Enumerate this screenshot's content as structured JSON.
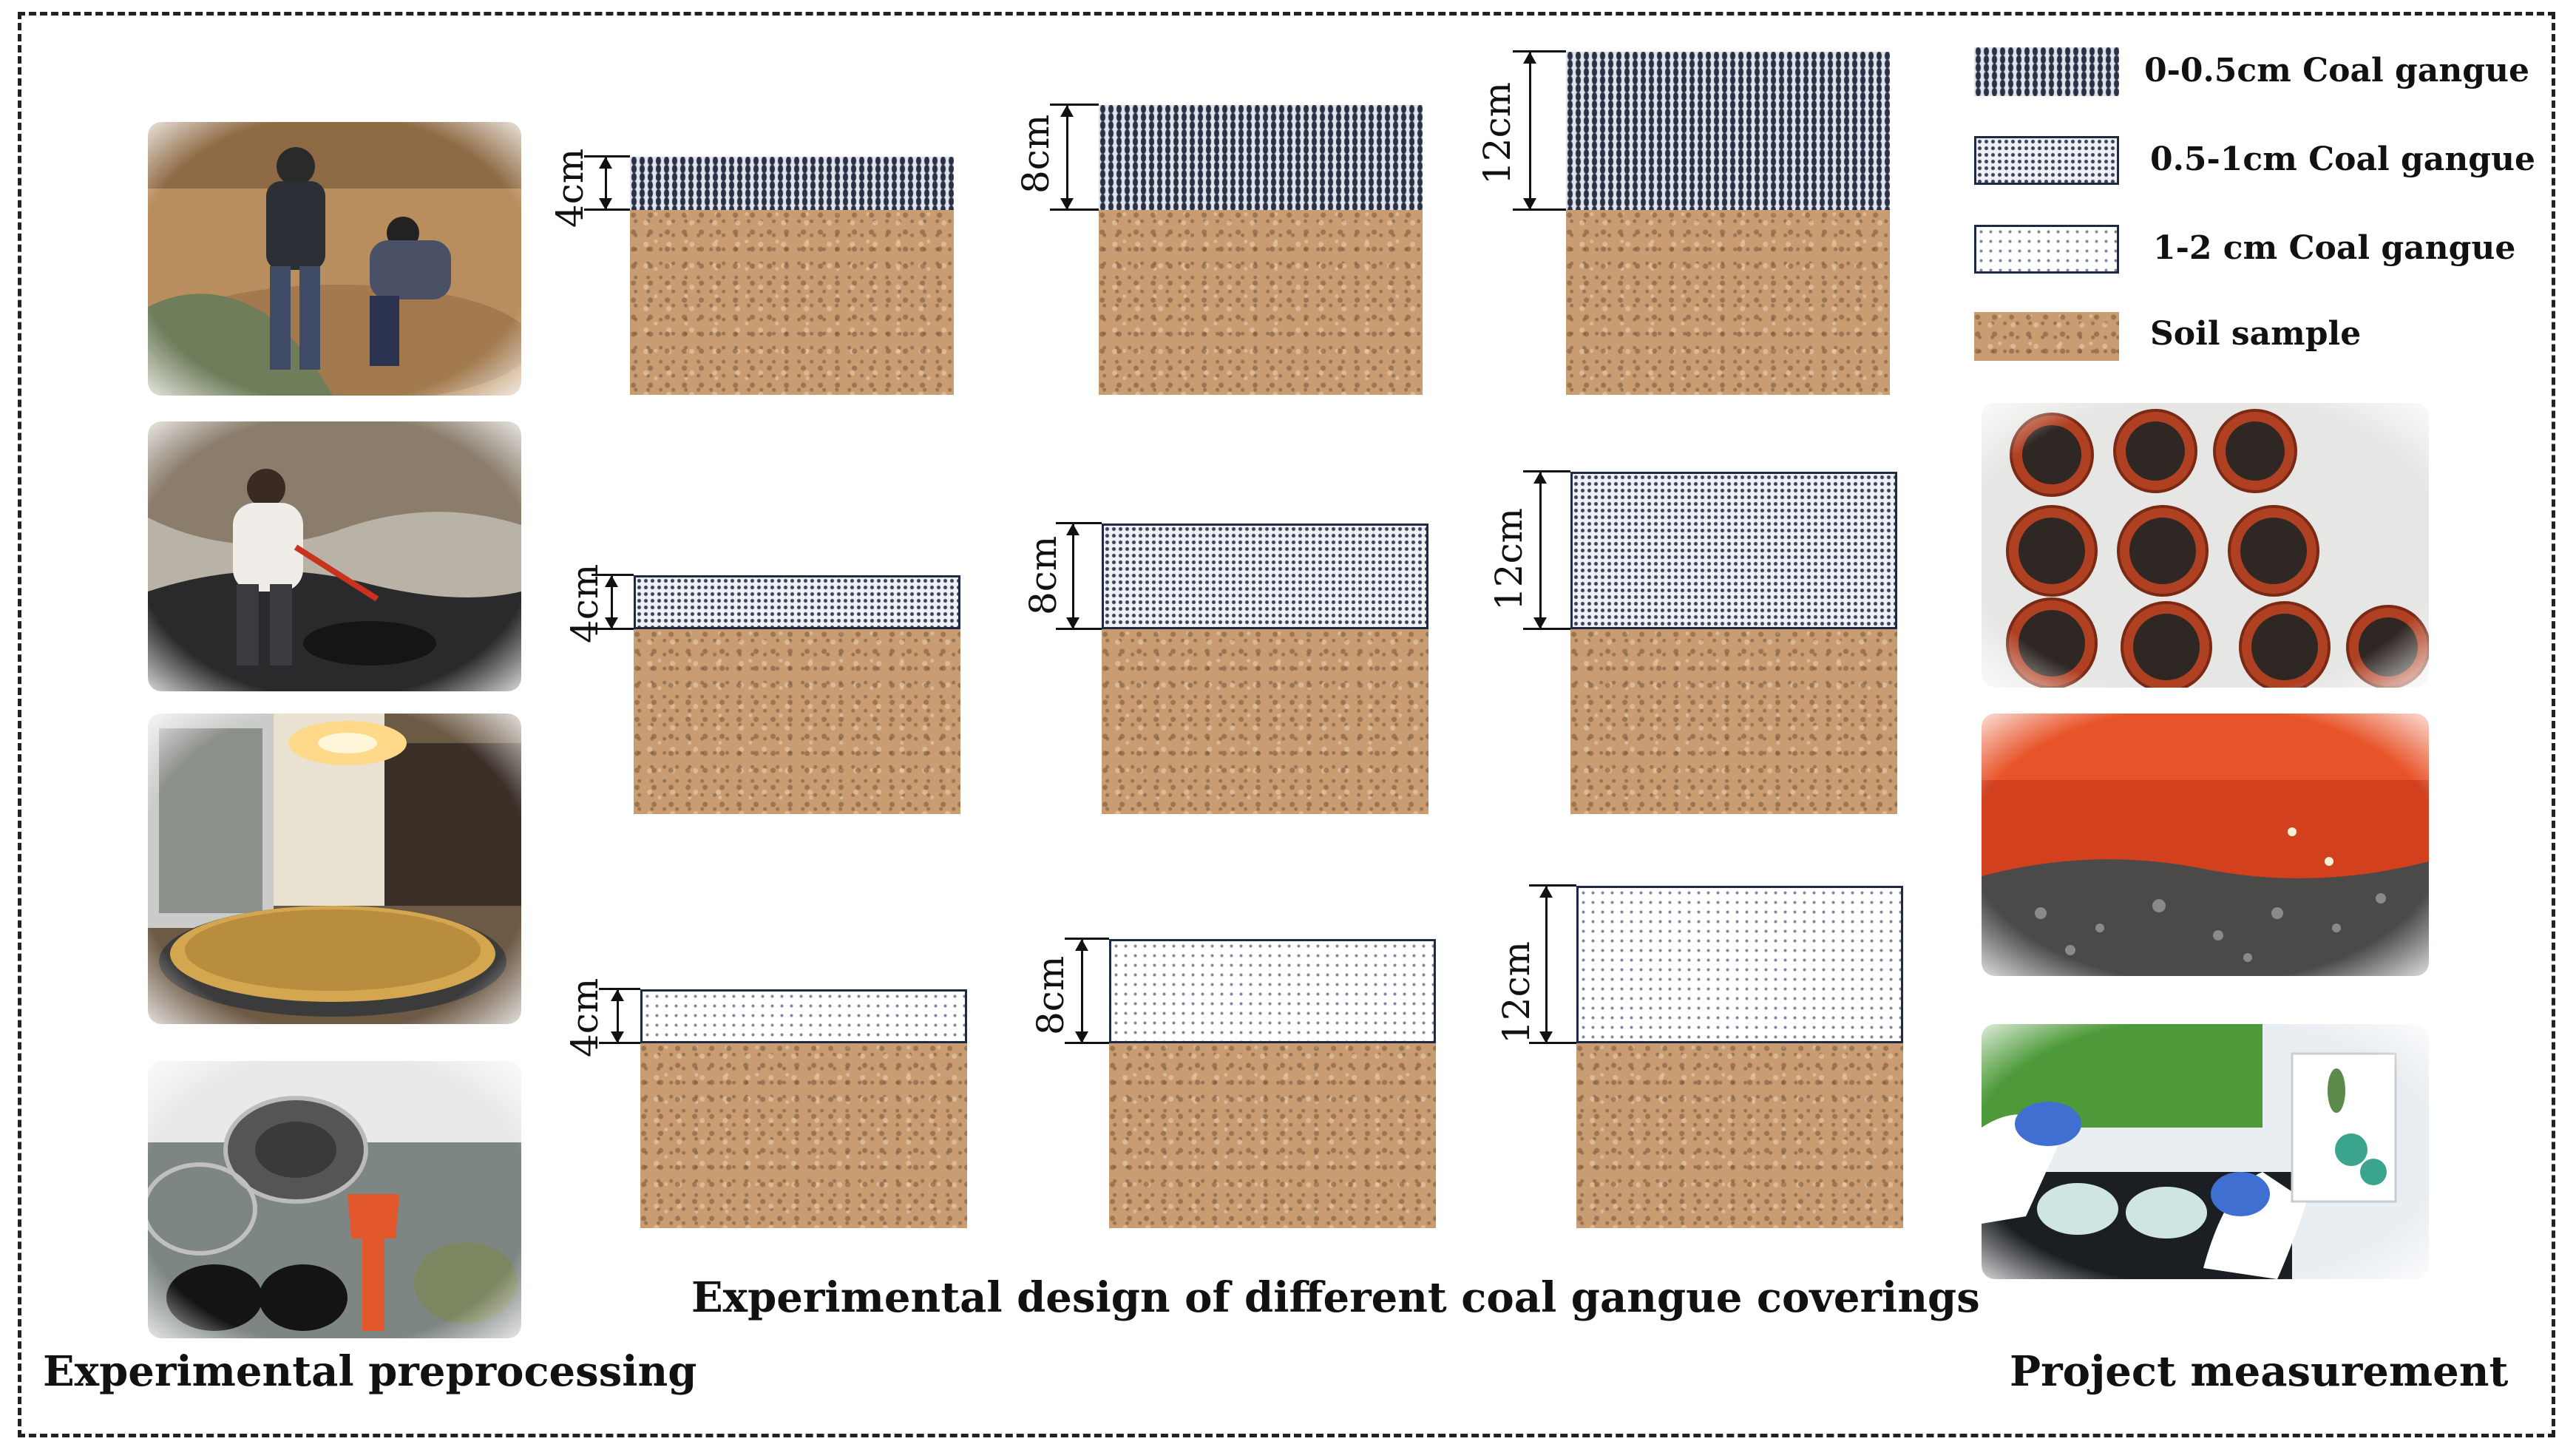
{
  "legend": {
    "items": [
      {
        "label": "0-0.5cm Coal gangue",
        "pattern": "dark-dense-gravel"
      },
      {
        "label": "0.5-1cm Coal gangue",
        "pattern": "medium-dotted-gravel"
      },
      {
        "label": "1-2  cm Coal gangue",
        "pattern": "light-sparse-dots"
      },
      {
        "label": "Soil sample",
        "pattern": "soil-texture"
      }
    ]
  },
  "design": {
    "rows": [
      {
        "gangue_size": "0-0.5cm",
        "thickness_labels": [
          "4cm",
          "8cm",
          "12cm"
        ]
      },
      {
        "gangue_size": "0.5-1cm",
        "thickness_labels": [
          "4cm",
          "8cm",
          "12cm"
        ]
      },
      {
        "gangue_size": "1-2 cm",
        "thickness_labels": [
          "4cm",
          "8cm",
          "12cm"
        ]
      }
    ],
    "caption": "Experimental design of different coal gangue coverings"
  },
  "left": {
    "caption": "Experimental preprocessing",
    "photos": [
      "field-sampling-photo",
      "gangue-collection-photo",
      "air-drying-photo",
      "sieving-photo"
    ]
  },
  "right": {
    "caption": "Project measurement",
    "photos": [
      "potted-samples-photo",
      "germination-closeup-photo",
      "plant-measurement-photo"
    ]
  },
  "colors": {
    "soil": "#c99c72",
    "gangue_dark": "#2a3145",
    "border": "#1e2a44",
    "frame": "#222222"
  }
}
